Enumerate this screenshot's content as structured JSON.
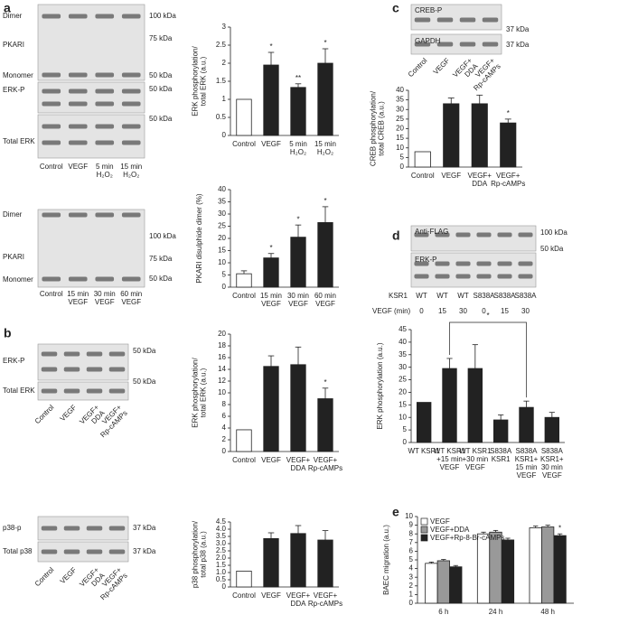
{
  "panel_letters": [
    "a",
    "b",
    "c",
    "d",
    "e"
  ],
  "blots": {
    "a1": {
      "rows": [
        "Dimer",
        "PKARI",
        "Monomer",
        "ERK-P",
        "Total ERK"
      ],
      "kda": [
        "100 kDa",
        "75 kDa",
        "50 kDa",
        "50 kDa",
        "50 kDa"
      ],
      "lanes": [
        "Control",
        "VEGF",
        "5 min\nH₂O₂",
        "15 min\nH₂O₂"
      ]
    },
    "a2": {
      "rows": [
        "Dimer",
        "PKARI",
        "Monomer"
      ],
      "kda": [
        "100 kDa",
        "75 kDa",
        "50 kDa"
      ],
      "lanes": [
        "Control",
        "15 min\nVEGF",
        "30 min\nVEGF",
        "60 min\nVEGF"
      ]
    },
    "b1": {
      "rows": [
        "ERK-P",
        "Total ERK"
      ],
      "kda": [
        "50 kDa",
        "50 kDa"
      ],
      "lanes": [
        "Control",
        "VEGF",
        "VEGF+\nDDA",
        "VEGF+\nRp-cAMPs"
      ]
    },
    "b2": {
      "rows": [
        "p38-p",
        "Total p38"
      ],
      "kda": [
        "37 kDa",
        "37 kDa"
      ],
      "lanes": [
        "Control",
        "VEGF",
        "VEGF+\nDDA",
        "VEGF+\nRp-cAMPs"
      ]
    },
    "c": {
      "rows": [
        "CREB-P",
        "GAPDH"
      ],
      "kda": [
        "37 kDa",
        "37 kDa"
      ],
      "lanes": [
        "Control",
        "VEGF",
        "VEGF+\nDDA",
        "VEGF+\nRp-cAMPs"
      ]
    },
    "d": {
      "rows": [
        "Anti-FLAG",
        "ERK-P"
      ],
      "kda": [
        "100 kDa",
        "50 kDa"
      ],
      "lanes": [
        "WT",
        "WT",
        "WT",
        "S838A",
        "S838A",
        "S838A"
      ],
      "row_labels": [
        "KSR1",
        "VEGF (min)"
      ],
      "vegf_min": [
        0,
        15,
        30,
        0,
        15,
        30
      ]
    }
  },
  "chart_data": [
    {
      "type": "bar",
      "y_label": "ERK phosphorylation/\ntotal ERK (a.u.)",
      "categories": [
        "Control",
        "VEGF",
        "5 min\nH₂O₂",
        "15 min\nH₂O₂"
      ],
      "values": [
        1,
        1.95,
        1.33,
        2.0
      ],
      "errors": [
        0,
        0.35,
        0.1,
        0.4
      ],
      "colors": [
        "#ffffff",
        "#222222",
        "#222222",
        "#222222"
      ],
      "value_annotations": [
        null,
        "*",
        "**",
        "*"
      ],
      "ylim": [
        0,
        3
      ],
      "yticks": [
        0,
        0.5,
        1,
        1.5,
        2,
        2.5,
        3
      ]
    },
    {
      "type": "bar",
      "y_label": "PKARI disulphide dimer (%)",
      "categories": [
        "Control",
        "15 min\nVEGF",
        "30 min\nVEGF",
        "60 min\nVEGF"
      ],
      "values": [
        5.5,
        12,
        20.5,
        26.5
      ],
      "errors": [
        1.2,
        1.8,
        5,
        6.5
      ],
      "colors": [
        "#ffffff",
        "#222222",
        "#222222",
        "#222222"
      ],
      "value_annotations": [
        null,
        "*",
        "*",
        "*"
      ],
      "ylim": [
        0,
        40
      ],
      "yticks": [
        0,
        5,
        10,
        15,
        20,
        25,
        30,
        35,
        40
      ]
    },
    {
      "type": "bar",
      "y_label": "ERK phosphorylation/\ntotal ERK (a.u.)",
      "categories": [
        "Control",
        "VEGF",
        "VEGF+\nDDA",
        "VEGF+\nRp-cAMPs"
      ],
      "values": [
        3.7,
        14.5,
        14.8,
        9
      ],
      "errors": [
        0,
        1.8,
        3,
        1.8
      ],
      "colors": [
        "#ffffff",
        "#222222",
        "#222222",
        "#222222"
      ],
      "value_annotations": [
        null,
        null,
        null,
        "*"
      ],
      "ylim": [
        0,
        20
      ],
      "yticks": [
        0,
        2,
        4,
        6,
        8,
        10,
        12,
        14,
        16,
        18,
        20
      ]
    },
    {
      "type": "bar",
      "y_label": "p38 phosphorylation/\ntotal p38 (a.u.)",
      "categories": [
        "Control",
        "VEGF",
        "VEGF+\nDDA",
        "VEGF+\nRp-cAMPs"
      ],
      "values": [
        1.1,
        3.35,
        3.7,
        3.25
      ],
      "errors": [
        0,
        0.4,
        0.55,
        0.65
      ],
      "colors": [
        "#ffffff",
        "#222222",
        "#222222",
        "#222222"
      ],
      "ylim": [
        0,
        4.5
      ],
      "yticks": [
        0,
        {
          "value": 0.5,
          "label": "0.5"
        },
        {
          "value": 1,
          "label": "1.0"
        },
        {
          "value": 1.5,
          "label": "1.5"
        },
        {
          "value": 2,
          "label": "2.0"
        },
        {
          "value": 2.5,
          "label": "2.5"
        },
        {
          "value": 3,
          "label": "3.0"
        },
        {
          "value": 3.5,
          "label": "3.5"
        },
        {
          "value": 4,
          "label": "4.0"
        },
        {
          "value": 4.5,
          "label": "4.5"
        }
      ]
    },
    {
      "type": "bar",
      "y_label": "CREB phosphorylation/\ntotal CREB (a.u.)",
      "categories": [
        "Control",
        "VEGF",
        "VEGF+\nDDA",
        "VEGF+\nRp-cAMPs"
      ],
      "values": [
        8,
        33,
        33,
        23
      ],
      "errors": [
        0,
        3,
        4.5,
        2
      ],
      "colors": [
        "#ffffff",
        "#222222",
        "#222222",
        "#222222"
      ],
      "value_annotations": [
        null,
        null,
        null,
        "*"
      ],
      "ylim": [
        0,
        40
      ],
      "yticks": [
        0,
        5,
        10,
        15,
        20,
        25,
        30,
        35,
        40
      ]
    },
    {
      "type": "bar",
      "y_label": "ERK phosphorylation (a.u.)",
      "categories": [
        "WT KSR1",
        "WT KSR1\n+15 min\nVEGF",
        "WT KSR1\n+30 min\nVEGF",
        "S838A\nKSR1",
        "S838A\nKSR1+\n15 min\nVEGF",
        "S838A\nKSR1+\n30 min\nVEGF"
      ],
      "values": [
        16,
        29.5,
        29.5,
        9,
        14,
        10
      ],
      "errors": [
        0,
        4,
        9.5,
        2,
        2.5,
        2
      ],
      "colors": [
        "#222222",
        "#222222",
        "#222222",
        "#222222",
        "#222222",
        "#222222"
      ],
      "bracket": {
        "between": [
          1,
          4
        ],
        "label": "*"
      },
      "ylim": [
        0,
        45
      ],
      "yticks": [
        0,
        5,
        10,
        15,
        20,
        25,
        30,
        35,
        40,
        45
      ]
    },
    {
      "type": "grouped_bar",
      "y_label": "BAEC migration (a.u.)",
      "categories": [
        "6 h",
        "24 h",
        "48 h"
      ],
      "series": [
        {
          "name": "VEGF",
          "color": "#ffffff",
          "values": [
            4.6,
            8.0,
            8.7
          ],
          "errors": [
            0.15,
            0.2,
            0.2
          ]
        },
        {
          "name": "VEGF+DDA",
          "color": "#999999",
          "values": [
            4.9,
            8.2,
            8.8
          ],
          "errors": [
            0.15,
            0.2,
            0.2
          ]
        },
        {
          "name": "VEGF+Rp-8-Br-cAMPs",
          "color": "#222222",
          "values": [
            4.2,
            7.3,
            7.8
          ],
          "errors": [
            0.15,
            0.2,
            0.2
          ],
          "value_annotations": [
            null,
            null,
            "*"
          ]
        }
      ],
      "legend": "top-left",
      "ylim": [
        0,
        10
      ],
      "yticks": [
        0,
        1,
        2,
        3,
        4,
        5,
        6,
        7,
        8,
        9,
        10
      ]
    }
  ]
}
